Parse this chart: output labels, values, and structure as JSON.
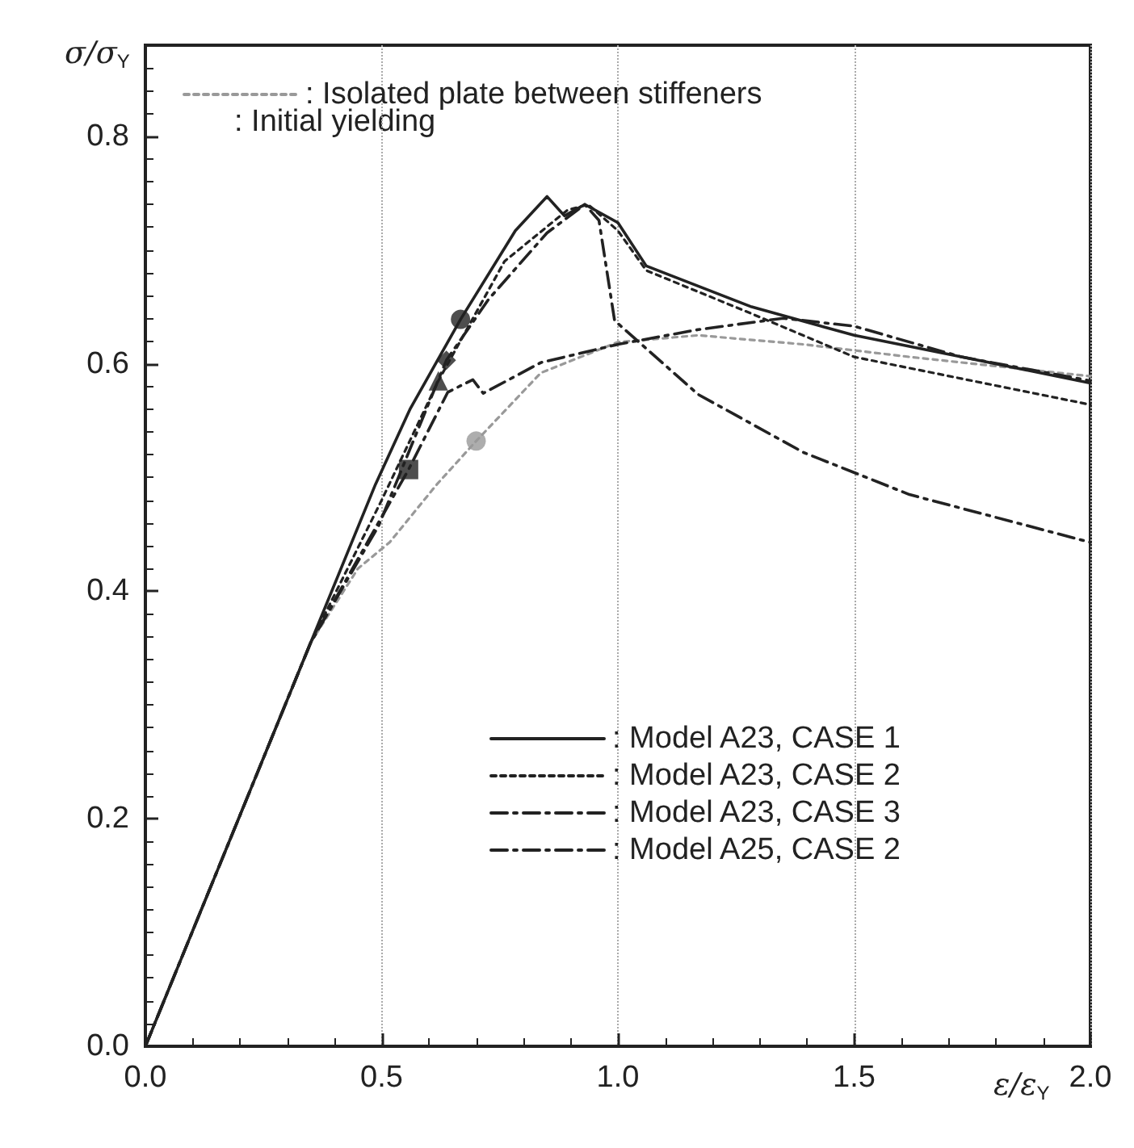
{
  "chart_data": {
    "type": "line",
    "xlabel": "ε/ε$_{Y}$",
    "ylabel": "σ/σ$_{Y}$",
    "xlim": [
      0,
      2
    ],
    "xticks": [
      {
        "value": 0,
        "label": "0.0"
      },
      0.5,
      {
        "value": 1,
        "label": "1.0"
      },
      1.5,
      {
        "value": 2,
        "label": "2.0"
      }
    ],
    "ylim": [
      0,
      0.88
    ],
    "yticks": [
      {
        "value": 0,
        "label": "0.0"
      },
      0.2,
      0.4,
      0.6,
      0.8
    ],
    "grid": "x",
    "legend": "top left",
    "annotations": [
      ": Initial yielding"
    ],
    "series": [
      {
        "name": ": Isolated plate between stiffeners",
        "color": "#999999",
        "line_style": "dotted",
        "x": [
          0,
          0.35,
          0.45,
          0.517,
          0.617,
          0.7,
          0.837,
          1.0,
          1.17,
          1.393,
          1.617,
          2.0
        ],
        "values": [
          0,
          0.355,
          0.42,
          0.443,
          0.494,
          0.532,
          0.592,
          0.619,
          0.625,
          0.617,
          0.606,
          0.589
        ]
      },
      {
        "name": ": Model A23, CASE 1",
        "color": "#222222",
        "line_style": "solid",
        "x": [
          0,
          0.487,
          0.56,
          0.667,
          0.783,
          0.85,
          0.887,
          0.93,
          1.0,
          1.06,
          1.283,
          1.5,
          1.727,
          2.0
        ],
        "values": [
          0,
          0.494,
          0.56,
          0.639,
          0.717,
          0.747,
          0.73,
          0.74,
          0.724,
          0.686,
          0.65,
          0.625,
          0.606,
          0.583
        ]
      },
      {
        "name": ": Model A23, CASE 2",
        "color": "#222222",
        "line_style": "dotted",
        "x": [
          0,
          0.35,
          0.5,
          0.62,
          0.76,
          0.893,
          0.937,
          1.0,
          1.06,
          1.283,
          1.5,
          2.0
        ],
        "values": [
          0,
          0.355,
          0.48,
          0.585,
          0.69,
          0.735,
          0.74,
          0.717,
          0.682,
          0.644,
          0.606,
          0.564
        ]
      },
      {
        "name": ": Model A23, CASE 3",
        "color": "#222222",
        "line_style": "dashed",
        "x": [
          0,
          0.35,
          0.557,
          0.64,
          0.693,
          0.715,
          0.837,
          1.0,
          1.17,
          1.35,
          1.5,
          1.727,
          2.0
        ],
        "values": [
          0,
          0.355,
          0.507,
          0.575,
          0.586,
          0.574,
          0.601,
          0.617,
          0.63,
          0.64,
          0.633,
          0.606,
          0.585
        ]
      },
      {
        "name": ": Model A25, CASE 2",
        "color": "#222222",
        "line_style": "dashed",
        "x": [
          0,
          0.35,
          0.493,
          0.637,
          0.727,
          0.85,
          0.93,
          0.96,
          0.993,
          1.17,
          1.393,
          1.617,
          2.0
        ],
        "values": [
          0,
          0.355,
          0.457,
          0.603,
          0.657,
          0.715,
          0.74,
          0.726,
          0.638,
          0.573,
          0.522,
          0.485,
          0.443
        ]
      },
      {
        "type": "scatter",
        "marker": "circle",
        "color": "#222222",
        "x": [
          0.667
        ],
        "values": [
          0.639
        ]
      },
      {
        "type": "scatter",
        "marker": "triangle",
        "color": "#222222",
        "x": [
          0.62
        ],
        "values": [
          0.585
        ]
      },
      {
        "type": "scatter",
        "marker": "square",
        "color": "#222222",
        "x": [
          0.557
        ],
        "values": [
          0.507
        ]
      },
      {
        "type": "scatter",
        "marker": "diamond",
        "color": "#222222",
        "x": [
          0.637
        ],
        "values": [
          0.603
        ]
      },
      {
        "type": "scatter",
        "marker": "circle",
        "color": "#999999",
        "x": [
          0.7
        ],
        "values": [
          0.532
        ]
      }
    ]
  }
}
